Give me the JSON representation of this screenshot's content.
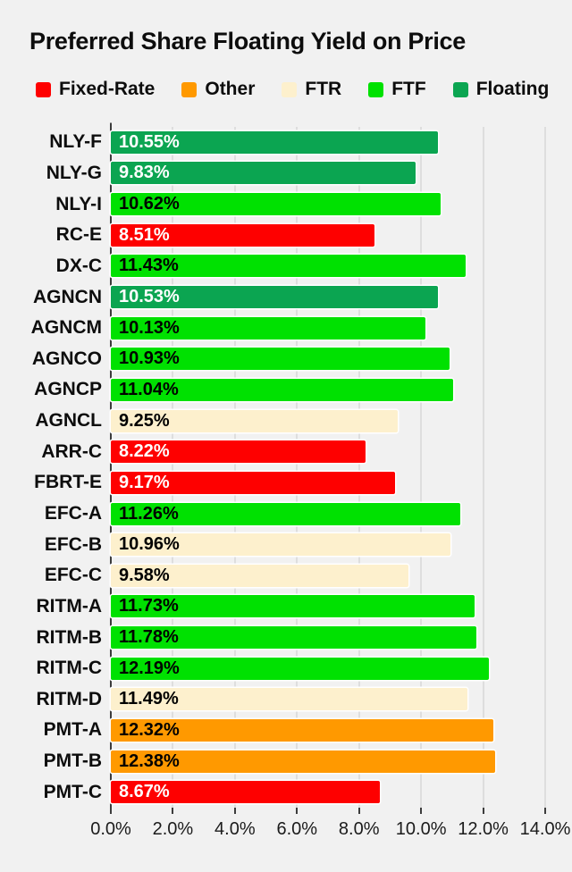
{
  "title": "Preferred Share Floating Yield on Price",
  "colors": {
    "background": "#f1f1f1",
    "gridline": "#cbcbcb",
    "axis_line": "#9a9a9a",
    "tick": "#3c3c3c",
    "title_text": "#0d0d0d"
  },
  "legend": [
    {
      "label": "Fixed-Rate",
      "group": "Fixed-Rate",
      "color": "#fe0000"
    },
    {
      "label": "Other",
      "group": "Other",
      "color": "#ff9900"
    },
    {
      "label": "FTR",
      "group": "FTR",
      "color": "#fdf0cd"
    },
    {
      "label": "FTF",
      "group": "FTF",
      "color": "#00e101"
    },
    {
      "label": "Floating",
      "group": "Floating",
      "color": "#0ba551"
    }
  ],
  "group_styles": {
    "Fixed-Rate": {
      "color": "#fe0000",
      "text": "#ffffff"
    },
    "Other": {
      "color": "#ff9900",
      "text": "#000000"
    },
    "FTR": {
      "color": "#fdf0cd",
      "text": "#000000"
    },
    "FTF": {
      "color": "#00e101",
      "text": "#000000"
    },
    "Floating": {
      "color": "#0ba551",
      "text": "#ffffff"
    }
  },
  "chart_data": {
    "type": "bar",
    "orientation": "horizontal",
    "title": "Preferred Share Floating Yield on Price",
    "xlabel": "",
    "ylabel": "",
    "xlim": [
      0,
      14
    ],
    "x_tick_labels": [
      "0.0%",
      "2.0%",
      "4.0%",
      "6.0%",
      "8.0%",
      "10.0%",
      "12.0%",
      "14.0%"
    ],
    "grid": true,
    "legend_position": "top",
    "bars": [
      {
        "label": "NLY-F",
        "value": 10.55,
        "display": "10.55%",
        "group": "Floating"
      },
      {
        "label": "NLY-G",
        "value": 9.83,
        "display": "9.83%",
        "group": "Floating"
      },
      {
        "label": "NLY-I",
        "value": 10.62,
        "display": "10.62%",
        "group": "FTF"
      },
      {
        "label": "RC-E",
        "value": 8.51,
        "display": "8.51%",
        "group": "Fixed-Rate"
      },
      {
        "label": "DX-C",
        "value": 11.43,
        "display": "11.43%",
        "group": "FTF"
      },
      {
        "label": "AGNCN",
        "value": 10.53,
        "display": "10.53%",
        "group": "Floating"
      },
      {
        "label": "AGNCM",
        "value": 10.13,
        "display": "10.13%",
        "group": "FTF"
      },
      {
        "label": "AGNCO",
        "value": 10.93,
        "display": "10.93%",
        "group": "FTF"
      },
      {
        "label": "AGNCP",
        "value": 11.04,
        "display": "11.04%",
        "group": "FTF"
      },
      {
        "label": "AGNCL",
        "value": 9.25,
        "display": "9.25%",
        "group": "FTR"
      },
      {
        "label": "ARR-C",
        "value": 8.22,
        "display": "8.22%",
        "group": "Fixed-Rate"
      },
      {
        "label": "FBRT-E",
        "value": 9.17,
        "display": "9.17%",
        "group": "Fixed-Rate"
      },
      {
        "label": "EFC-A",
        "value": 11.26,
        "display": "11.26%",
        "group": "FTF"
      },
      {
        "label": "EFC-B",
        "value": 10.96,
        "display": "10.96%",
        "group": "FTR"
      },
      {
        "label": "EFC-C",
        "value": 9.58,
        "display": "9.58%",
        "group": "FTR"
      },
      {
        "label": "RITM-A",
        "value": 11.73,
        "display": "11.73%",
        "group": "FTF"
      },
      {
        "label": "RITM-B",
        "value": 11.78,
        "display": "11.78%",
        "group": "FTF"
      },
      {
        "label": "RITM-C",
        "value": 12.19,
        "display": "12.19%",
        "group": "FTF"
      },
      {
        "label": "RITM-D",
        "value": 11.49,
        "display": "11.49%",
        "group": "FTR"
      },
      {
        "label": "PMT-A",
        "value": 12.32,
        "display": "12.32%",
        "group": "Other"
      },
      {
        "label": "PMT-B",
        "value": 12.38,
        "display": "12.38%",
        "group": "Other"
      },
      {
        "label": "PMT-C",
        "value": 8.67,
        "display": "8.67%",
        "group": "Fixed-Rate"
      }
    ]
  }
}
